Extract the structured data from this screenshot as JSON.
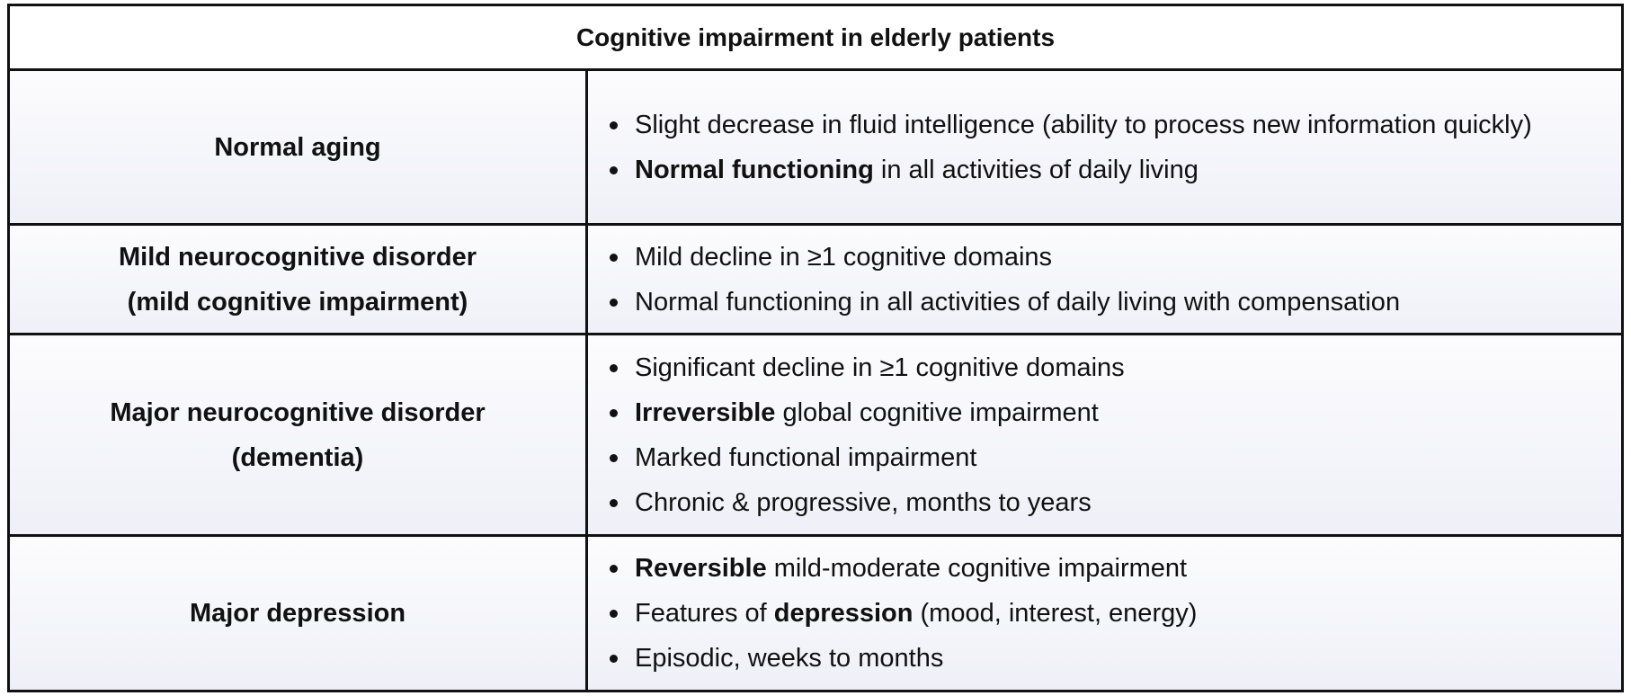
{
  "table": {
    "title": "Cognitive impairment in elderly patients",
    "rows": [
      {
        "condition": [
          "Normal aging"
        ],
        "features": [
          [
            {
              "t": "Slight decrease in fluid intelligence (ability to process new information quickly)",
              "b": false
            }
          ],
          [
            {
              "t": "Normal functioning",
              "b": true
            },
            {
              "t": " in all activities of daily living",
              "b": false
            }
          ]
        ]
      },
      {
        "condition": [
          "Mild neurocognitive disorder",
          "(mild cognitive impairment)"
        ],
        "features": [
          [
            {
              "t": "Mild decline in ≥1 cognitive domains",
              "b": false
            }
          ],
          [
            {
              "t": "Normal functioning in all activities of daily living with compensation",
              "b": false
            }
          ]
        ]
      },
      {
        "condition": [
          "Major neurocognitive disorder",
          "(dementia)"
        ],
        "features": [
          [
            {
              "t": "Significant decline in ≥1 cognitive domains",
              "b": false
            }
          ],
          [
            {
              "t": "Irreversible",
              "b": true
            },
            {
              "t": " global cognitive impairment",
              "b": false
            }
          ],
          [
            {
              "t": "Marked functional impairment",
              "b": false
            }
          ],
          [
            {
              "t": "Chronic & progressive, months to years",
              "b": false
            }
          ]
        ]
      },
      {
        "condition": [
          "Major depression"
        ],
        "features": [
          [
            {
              "t": "Reversible",
              "b": true
            },
            {
              "t": " mild-moderate cognitive impairment",
              "b": false
            }
          ],
          [
            {
              "t": "Features of ",
              "b": false
            },
            {
              "t": "depression",
              "b": true
            },
            {
              "t": " (mood, interest, energy)",
              "b": false
            }
          ],
          [
            {
              "t": "Episodic, weeks to months",
              "b": false
            }
          ]
        ]
      }
    ]
  }
}
